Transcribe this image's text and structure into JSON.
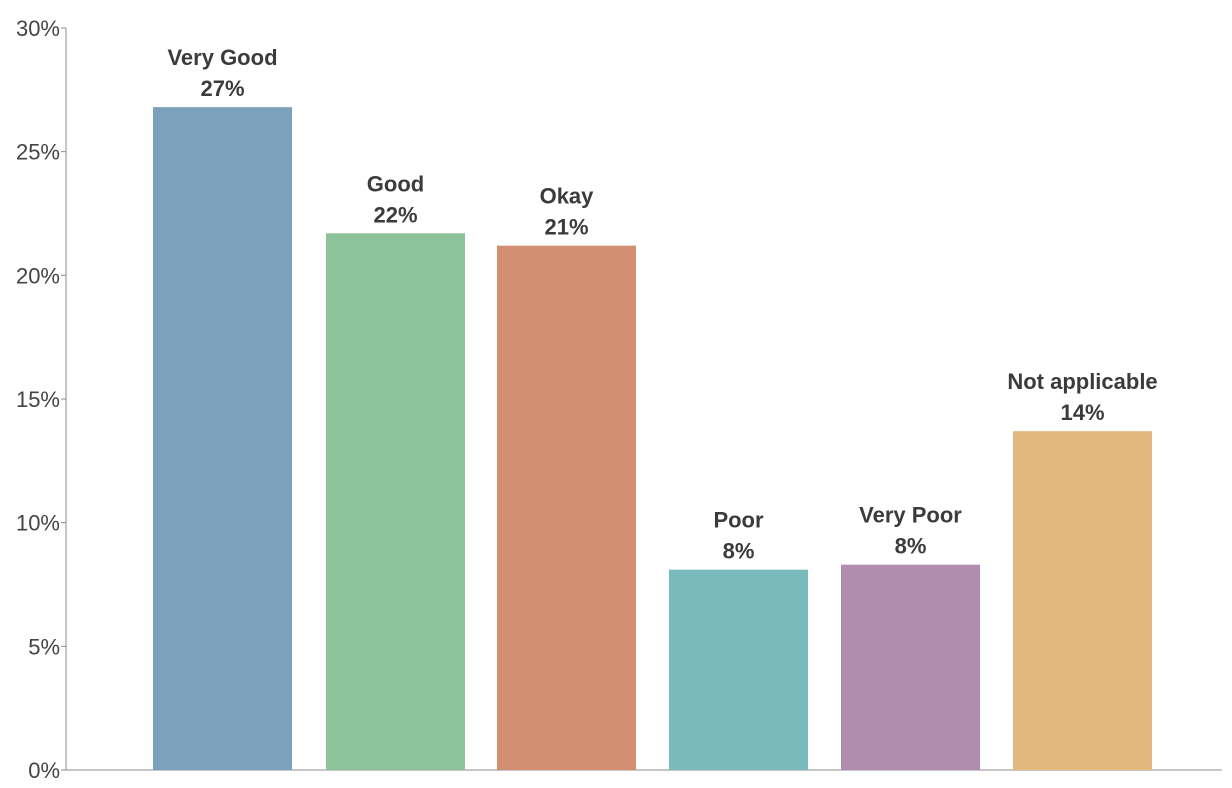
{
  "chart_data": {
    "type": "bar",
    "title": "",
    "xlabel": "",
    "ylabel": "",
    "ylim": [
      0,
      30
    ],
    "yticks": [
      "0%",
      "5%",
      "10%",
      "15%",
      "20%",
      "25%",
      "30%"
    ],
    "ytick_values": [
      0,
      5,
      10,
      15,
      20,
      25,
      30
    ],
    "grid": false,
    "legend": "none",
    "categories": [
      "Very Good",
      "Good",
      "Okay",
      "Poor",
      "Very Poor",
      "Not applicable"
    ],
    "values": [
      26.8,
      21.7,
      21.2,
      8.1,
      8.3,
      13.7
    ],
    "value_labels": [
      "27%",
      "22%",
      "21%",
      "8%",
      "8%",
      "14%"
    ],
    "colors": [
      "#7ba1bd",
      "#8dc39b",
      "#d38f72",
      "#79bbbd",
      "#b08db0",
      "#e3b87e"
    ]
  }
}
